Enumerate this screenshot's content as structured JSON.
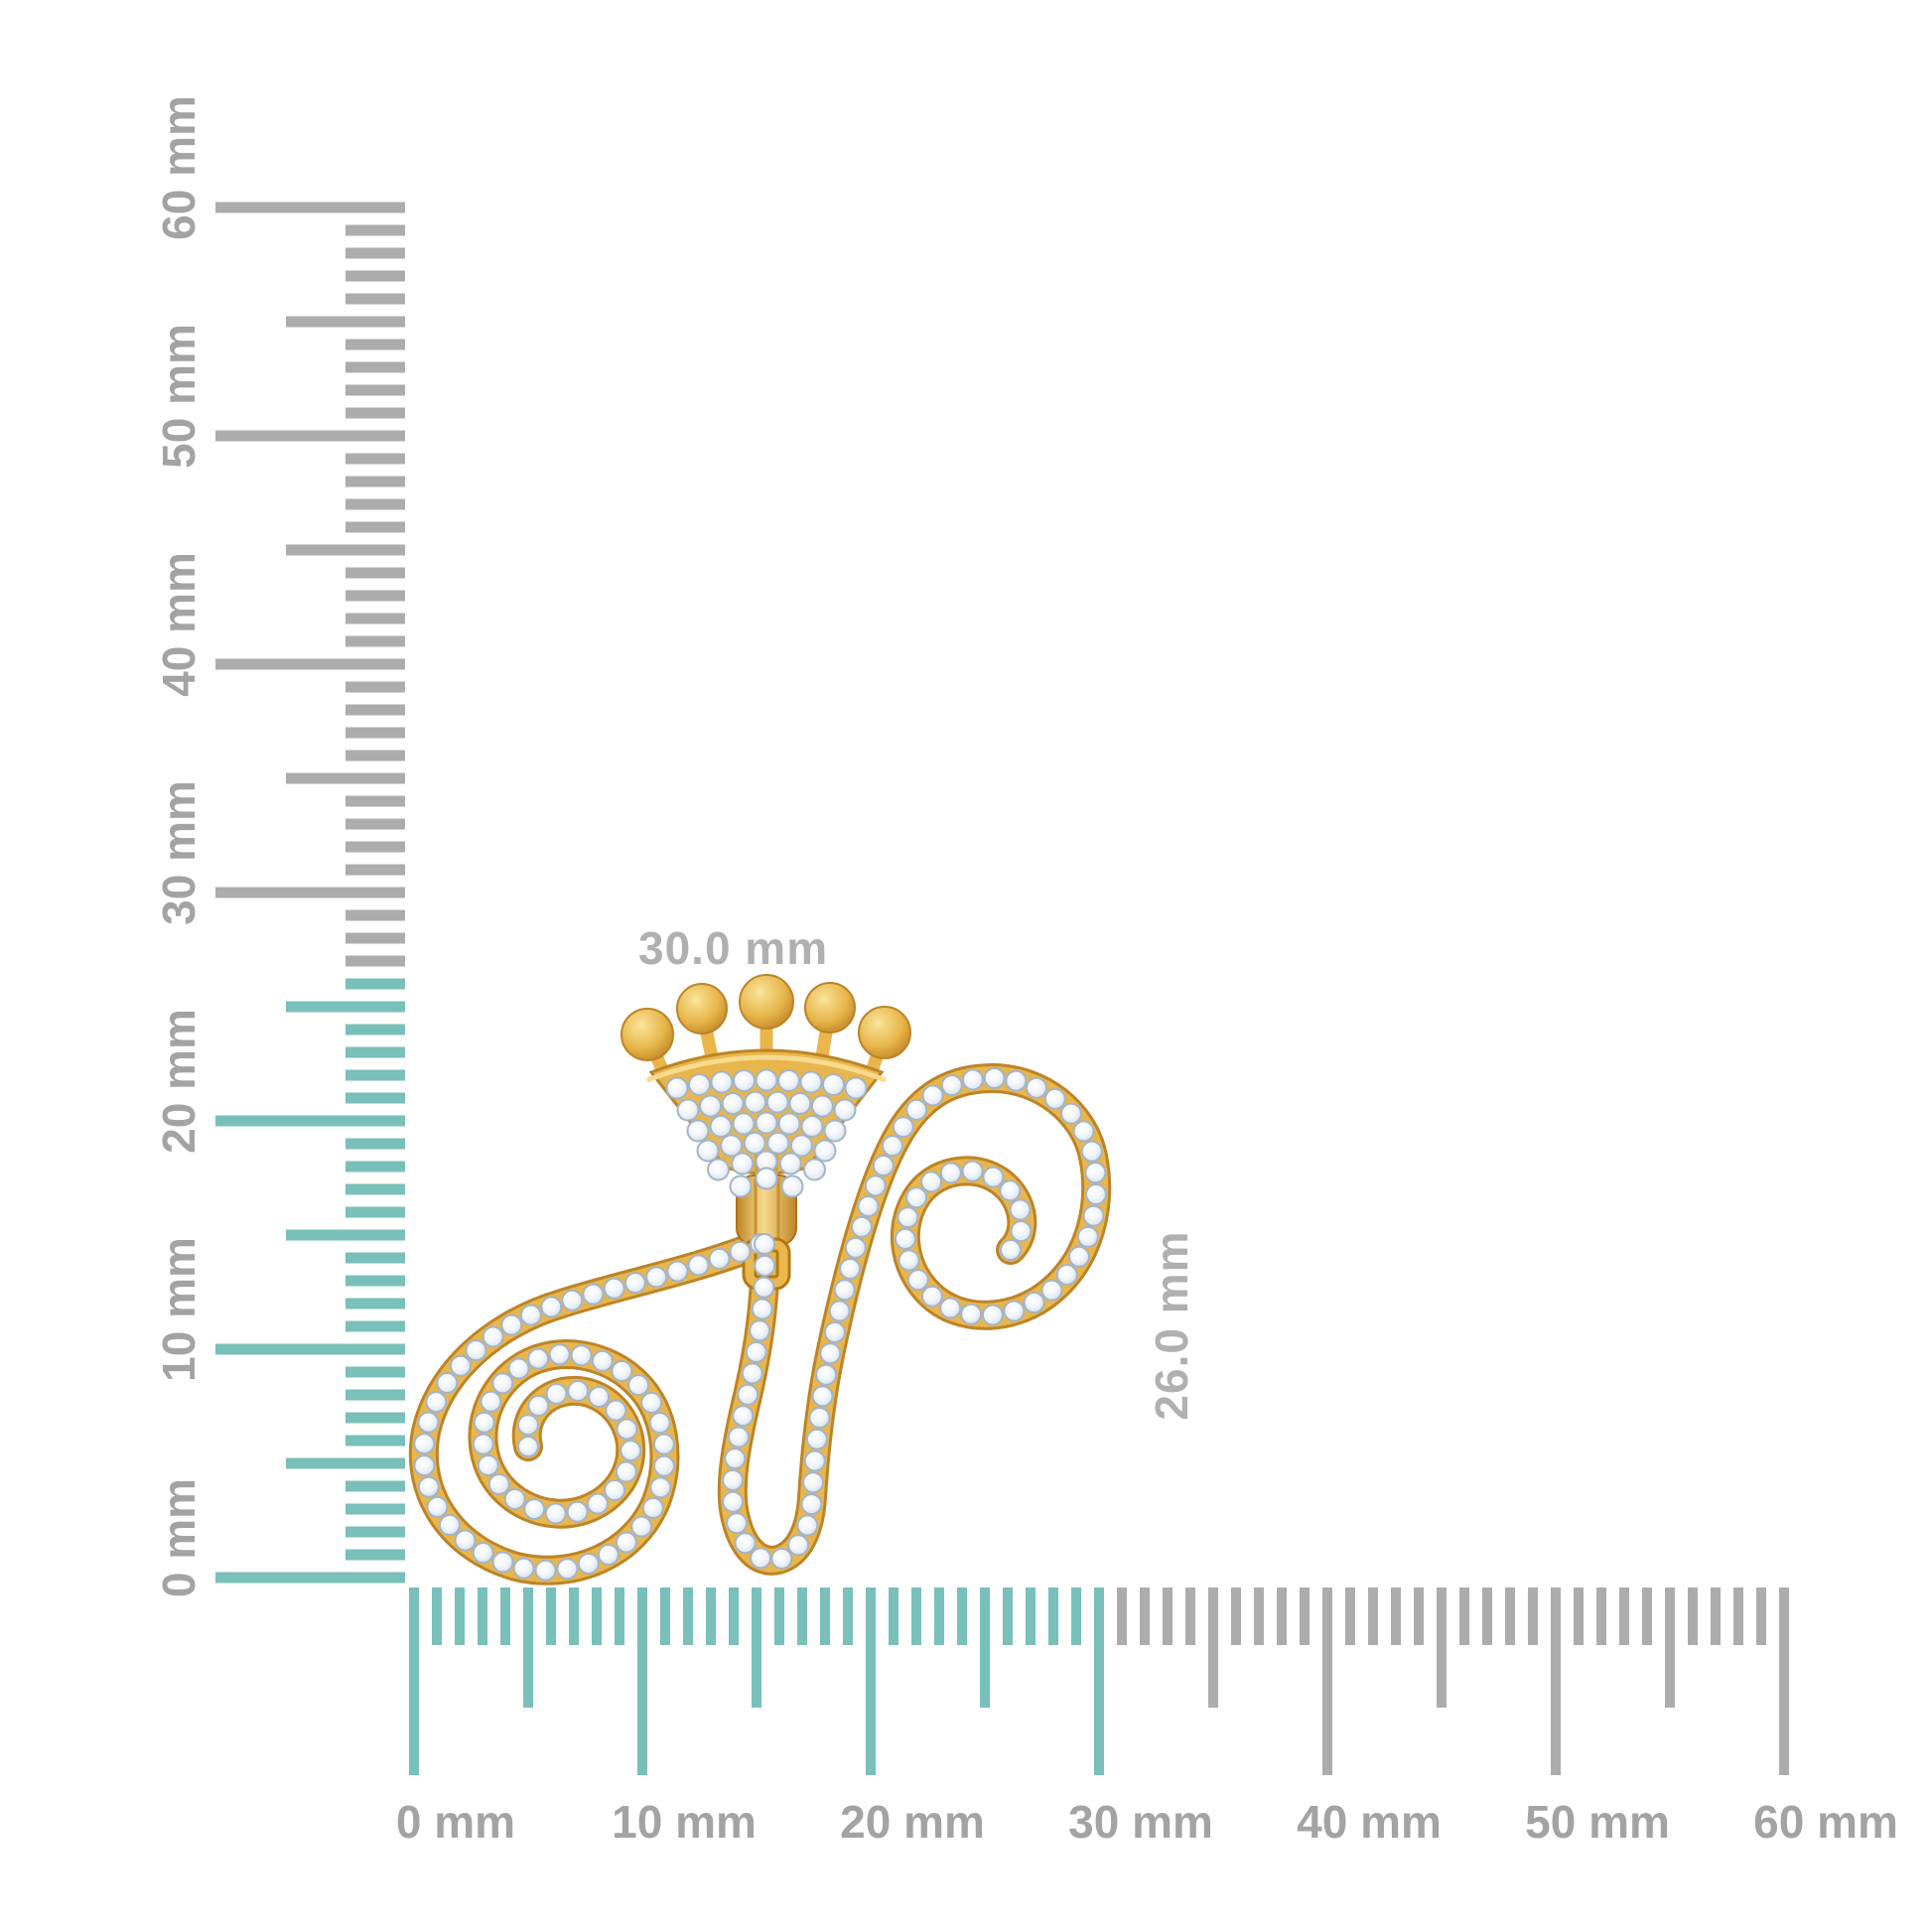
{
  "scene": {
    "background_color": "#ffffff",
    "illustration": "gold-diamond-crown-letter-n-pendant-with-measurement-rulers"
  },
  "pendant": {
    "width_label": "30.0 mm",
    "height_label": "26.0 mm",
    "dimension_label_color": "#b0b0b0",
    "gold_color": "#e8b64b",
    "gold_dark": "#bd8426",
    "gold_light": "#f7da8e",
    "diamond_color": "#eef3f9",
    "diamond_edge": "#a4b4c7"
  },
  "rulers": {
    "unit": "mm",
    "tick_color": "#acacac",
    "label_color": "#a3a3a3",
    "highlight_color": "#79bfba",
    "vertical": {
      "min_mm": 0,
      "max_mm": 60,
      "label_step_mm": 10,
      "highlight_extent_mm": 26,
      "labels": [
        "0 mm",
        "10 mm",
        "20 mm",
        "30 mm",
        "40 mm",
        "50 mm",
        "60 mm"
      ]
    },
    "horizontal": {
      "min_mm": 0,
      "max_mm": 60,
      "label_step_mm": 10,
      "highlight_extent_mm": 30,
      "labels": [
        "0 mm",
        "10 mm",
        "20 mm",
        "30 mm",
        "40 mm",
        "50 mm",
        "60 mm"
      ]
    }
  }
}
